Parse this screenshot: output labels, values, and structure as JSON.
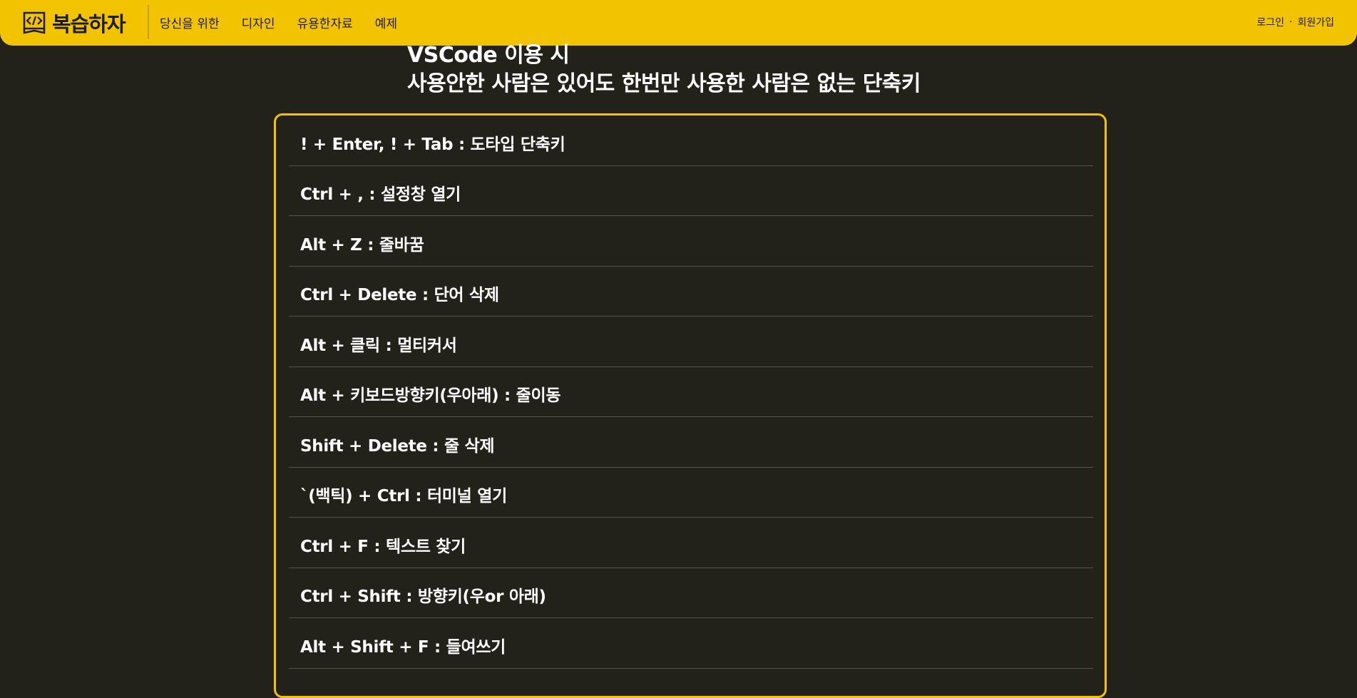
{
  "brand": {
    "name": "복습하자",
    "icon": "code-book-icon"
  },
  "nav": {
    "items": [
      {
        "label": "당신을 위한"
      },
      {
        "label": "디자인"
      },
      {
        "label": "유용한자료"
      },
      {
        "label": "예제"
      }
    ]
  },
  "auth": {
    "login": "로그인",
    "separator": "·",
    "signup": "회원가입"
  },
  "title": {
    "line1": "VSCode 이용 시",
    "line2": "사용안한 사람은 있어도 한번만 사용한 사람은 없는 단축키"
  },
  "shortcuts": [
    "! + Enter, ! + Tab : 도타입 단축키",
    "Ctrl + , : 설정창 열기",
    "Alt + Z : 줄바꿈",
    "Ctrl + Delete : 단어 삭제",
    "Alt + 클릭 : 멀티커서",
    "Alt + 키보드방향키(우아래) : 줄이동",
    "Shift + Delete : 줄 삭제",
    "`(백틱) + Ctrl : 터미널 열기",
    "Ctrl + F : 텍스트 찾기",
    "Ctrl + Shift : 방향키(우or 아래)",
    "Alt + Shift + F : 들여쓰기"
  ],
  "colors": {
    "accent": "#f2c300",
    "background": "#22211a",
    "text": "#ffffff",
    "divider": "#55544c"
  }
}
